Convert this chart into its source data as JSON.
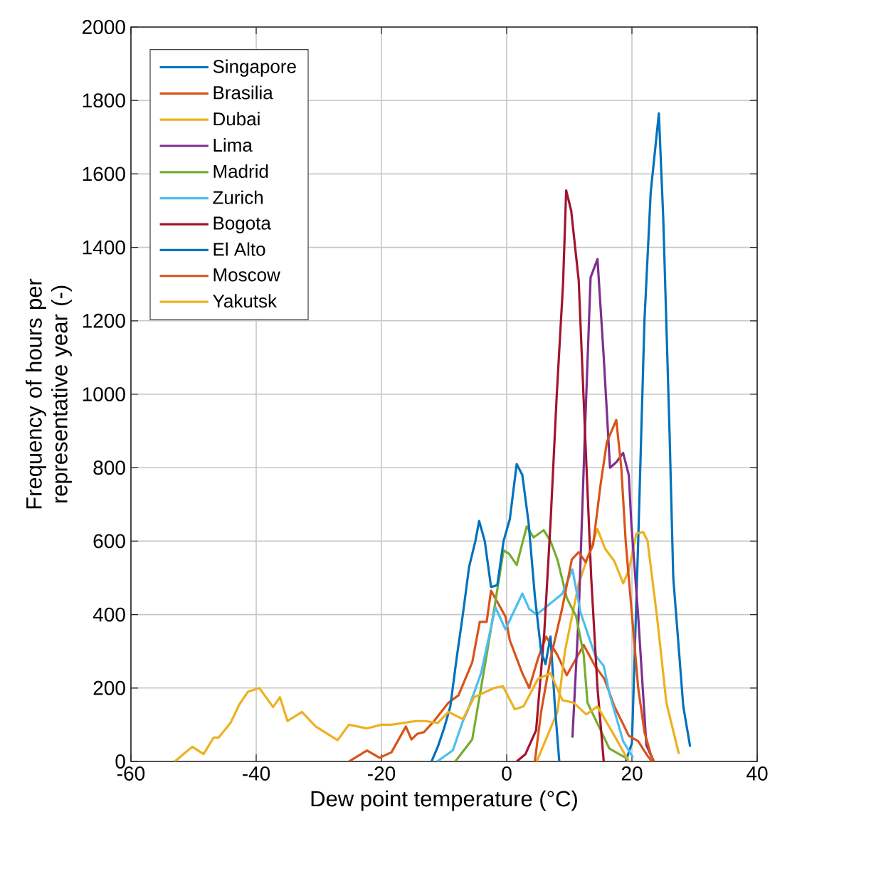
{
  "chart_data": {
    "type": "line",
    "xlabel": "Dew point temperature (°C)",
    "ylabel": "Frequency of hours per representative year (-)",
    "xlim": [
      -60,
      40
    ],
    "ylim": [
      0,
      2000
    ],
    "xticks": [
      -60,
      -40,
      -20,
      0,
      20,
      40
    ],
    "yticks": [
      0,
      200,
      400,
      600,
      800,
      1000,
      1200,
      1400,
      1600,
      1800,
      2000
    ],
    "grid": true,
    "legend": "top left",
    "line_style": "solid",
    "marker": "none",
    "series": [
      {
        "name": "Singapore",
        "color": "#0072bd",
        "x": [
          19,
          20,
          21,
          22,
          23,
          24.3,
          25,
          26,
          26.6,
          28.2,
          29.3
        ],
        "values": [
          0,
          50,
          600,
          1200,
          1550,
          1765,
          1480,
          900,
          500,
          150,
          40
        ]
      },
      {
        "name": "Brasilia",
        "color": "#d95319",
        "x": [
          -25.2,
          -22.3,
          -20.3,
          -18.4,
          -16.1,
          -15.2,
          -14.3,
          -13.2,
          -11.6,
          -9.3,
          -7.7,
          -5.5,
          -4.3,
          -3.2,
          -2.5,
          -0.2,
          0.5,
          2.5,
          3.6,
          5,
          6.3,
          8.1,
          9.6,
          12.3,
          14.1,
          15.6,
          17.2,
          19.5,
          21,
          22.5,
          23.2
        ],
        "values": [
          0,
          30,
          10,
          25,
          95,
          60,
          75,
          80,
          110,
          160,
          180,
          270,
          380,
          380,
          465,
          395,
          330,
          240,
          200,
          280,
          340,
          290,
          235,
          317,
          260,
          225,
          150,
          70,
          55,
          15,
          0
        ]
      },
      {
        "name": "Dubai",
        "color": "#edb120",
        "x": [
          4.8,
          8.1,
          9.3,
          11.5,
          14.5,
          15.7,
          17.2,
          18.6,
          19.5,
          20.7,
          21.8,
          22.5,
          24,
          25.5,
          27.5
        ],
        "values": [
          0,
          135,
          300,
          485,
          633,
          580,
          545,
          485,
          520,
          620,
          625,
          600,
          395,
          160,
          20
        ]
      },
      {
        "name": "Lima",
        "color": "#7e2f8e",
        "x": [
          10.5,
          11.5,
          12.5,
          13.4,
          14.5,
          15.5,
          16.5,
          17.5,
          18.6,
          19.5,
          19.9,
          21,
          22.3,
          23.2
        ],
        "values": [
          65,
          400,
          900,
          1318,
          1368,
          1100,
          800,
          815,
          840,
          780,
          650,
          395,
          45,
          10
        ]
      },
      {
        "name": "Madrid",
        "color": "#77ac30",
        "x": [
          -8.2,
          -5.5,
          -3.2,
          -1.8,
          -0.5,
          0.4,
          1.6,
          3.2,
          4.3,
          5.9,
          7,
          8.1,
          9.6,
          11.1,
          12.3,
          12.9,
          15,
          16.4,
          19.5
        ],
        "values": [
          0,
          60,
          290,
          435,
          575,
          565,
          535,
          640,
          610,
          630,
          600,
          550,
          445,
          395,
          290,
          160,
          85,
          35,
          5
        ]
      },
      {
        "name": "Zurich",
        "color": "#4dbeee",
        "x": [
          -11.1,
          -8.6,
          -7,
          -6.3,
          -4.1,
          -1.8,
          -0.2,
          2.5,
          3.6,
          4.8,
          8.9,
          10.5,
          11.8,
          14.1,
          15.5,
          16.4,
          18.6,
          20.2
        ],
        "values": [
          0,
          30,
          110,
          135,
          240,
          420,
          360,
          457,
          415,
          400,
          457,
          523,
          405,
          290,
          260,
          185,
          55,
          10
        ]
      },
      {
        "name": "Bogota",
        "color": "#a2142f",
        "x": [
          1.6,
          3,
          4.7,
          6,
          7,
          8,
          9,
          9.5,
          10.3,
          11.5,
          12.5,
          13.5,
          14.5,
          15.5
        ],
        "values": [
          0,
          20,
          85,
          350,
          650,
          1000,
          1300,
          1555,
          1500,
          1310,
          900,
          500,
          200,
          0
        ]
      },
      {
        "name": "El Alto",
        "color": "#0072bd",
        "x": [
          -12,
          -11,
          -10,
          -9,
          -8,
          -7,
          -6,
          -5,
          -4.4,
          -3.5,
          -2.5,
          -1.5,
          -0.5,
          0.5,
          1.6,
          2.5,
          3.5,
          4.5,
          5.5,
          6.2,
          7,
          7.7,
          8.4
        ],
        "values": [
          0,
          40,
          90,
          150,
          280,
          400,
          530,
          600,
          655,
          600,
          475,
          480,
          600,
          660,
          810,
          780,
          650,
          450,
          300,
          265,
          340,
          150,
          0
        ]
      },
      {
        "name": "Moscow",
        "color": "#d95319",
        "x": [
          4.5,
          5.5,
          7,
          8.9,
          10.4,
          11.5,
          12.6,
          13.8,
          15,
          16,
          17.5,
          18.3,
          19,
          20,
          21,
          22,
          23,
          23.5
        ],
        "values": [
          0,
          135,
          280,
          420,
          550,
          570,
          543,
          590,
          755,
          870,
          930,
          800,
          600,
          400,
          200,
          80,
          20,
          0
        ]
      },
      {
        "name": "Yakutsk",
        "color": "#edb120",
        "x": [
          -53,
          -50.2,
          -48.4,
          -46.8,
          -46,
          -44.1,
          -42.7,
          -41.3,
          -39.5,
          -37.3,
          -36.2,
          -35,
          -32.7,
          -30.5,
          -27,
          -25.2,
          -22.3,
          -20,
          -18.4,
          -14.5,
          -13,
          -11,
          -9.3,
          -7,
          -5.2,
          -2,
          -0.6,
          1.3,
          2.7,
          5,
          7,
          8.9,
          10.7,
          12.7,
          14.5,
          17.2,
          19.5
        ],
        "values": [
          0,
          40,
          20,
          65,
          65,
          105,
          155,
          190,
          200,
          148,
          175,
          110,
          135,
          95,
          58,
          100,
          90,
          100,
          100,
          110,
          110,
          105,
          135,
          115,
          175,
          200,
          205,
          142,
          150,
          225,
          240,
          167,
          160,
          128,
          150,
          70,
          0
        ]
      }
    ]
  }
}
